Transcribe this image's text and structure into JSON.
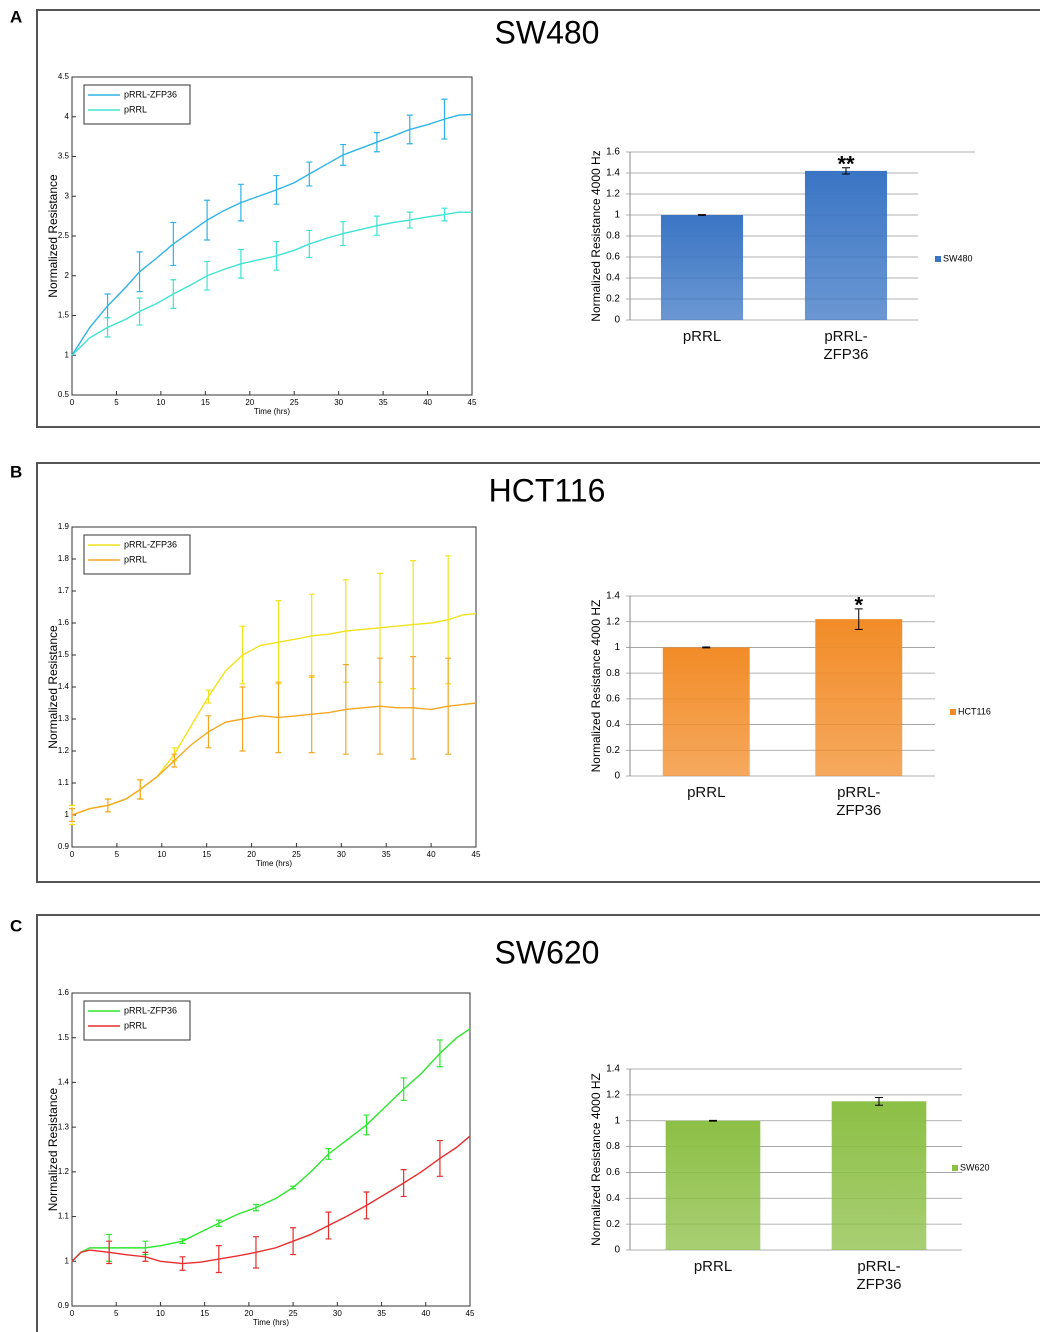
{
  "panels": [
    {
      "letter": "A",
      "title": "SW480"
    },
    {
      "letter": "B",
      "title": "HCT116"
    },
    {
      "letter": "C",
      "title": "SW620"
    }
  ],
  "chart_data": [
    {
      "type": "line",
      "xlabel": "Time (hrs)",
      "ylabel": "Normalized Resistance",
      "xlim": [
        0,
        45
      ],
      "ylim": [
        0.5,
        4.5
      ],
      "xticks": [
        0,
        5,
        10,
        15,
        20,
        25,
        30,
        35,
        40,
        45
      ],
      "yticks": [
        0.5,
        1,
        1.5,
        2,
        2.5,
        3,
        3.5,
        4,
        4.5
      ],
      "legend": "upper left",
      "x": [
        0,
        2,
        4,
        6,
        7.6,
        9.5,
        11.4,
        13.3,
        15.2,
        17.1,
        19,
        21,
        23,
        25,
        26.7,
        28.6,
        30.5,
        32.4,
        34.3,
        36.2,
        38,
        40,
        41.9,
        43.5,
        45
      ],
      "series": [
        {
          "name": "pRRL-ZFP36",
          "color": "#2fb3e6",
          "values": [
            1.0,
            1.35,
            1.62,
            1.85,
            2.05,
            2.22,
            2.4,
            2.55,
            2.7,
            2.82,
            2.92,
            3.0,
            3.08,
            3.17,
            3.28,
            3.4,
            3.52,
            3.6,
            3.68,
            3.76,
            3.84,
            3.9,
            3.97,
            4.02,
            4.03
          ],
          "errors": [
            null,
            null,
            0.15,
            null,
            0.25,
            null,
            0.27,
            null,
            0.25,
            null,
            0.23,
            null,
            0.18,
            null,
            0.15,
            null,
            0.13,
            null,
            0.12,
            null,
            0.18,
            null,
            0.25,
            null,
            null
          ]
        },
        {
          "name": "pRRL",
          "color": "#3ee3d3",
          "values": [
            1.0,
            1.22,
            1.35,
            1.45,
            1.55,
            1.65,
            1.77,
            1.88,
            2.0,
            2.08,
            2.15,
            2.2,
            2.25,
            2.32,
            2.4,
            2.47,
            2.53,
            2.58,
            2.63,
            2.67,
            2.7,
            2.74,
            2.77,
            2.8,
            2.8
          ],
          "errors": [
            null,
            null,
            0.12,
            null,
            0.17,
            null,
            0.18,
            null,
            0.18,
            null,
            0.18,
            null,
            0.18,
            null,
            0.17,
            null,
            0.15,
            null,
            0.12,
            null,
            0.1,
            null,
            0.08,
            null,
            null
          ]
        }
      ]
    },
    {
      "type": "bar",
      "ylabel": "Normalized Resistance 4000 Hz",
      "categories": [
        "pRRL",
        "pRRL-ZFP36"
      ],
      "values": [
        1,
        1.42
      ],
      "errors": [
        0.003,
        0.03
      ],
      "ylim": [
        0,
        1.6
      ],
      "yticks": [
        0,
        0.2,
        0.4,
        0.6,
        0.8,
        1,
        1.2,
        1.4,
        1.6
      ],
      "color": "#3a75c4",
      "legend_label": "SW480",
      "annotation": "**",
      "grid": true
    },
    {
      "type": "line",
      "xlabel": "Time (hrs)",
      "ylabel": "Normalized Resistance",
      "xlim": [
        0,
        45
      ],
      "ylim": [
        0.9,
        1.9
      ],
      "xticks": [
        0,
        5,
        10,
        15,
        20,
        25,
        30,
        35,
        40,
        45
      ],
      "yticks": [
        0.9,
        1,
        1.1,
        1.2,
        1.3,
        1.4,
        1.5,
        1.6,
        1.7,
        1.8,
        1.9
      ],
      "legend": "upper left",
      "x": [
        0,
        2,
        4,
        6,
        7.6,
        9.5,
        11.4,
        13.3,
        15.2,
        17.1,
        19,
        21,
        23,
        25,
        26.7,
        28.6,
        30.5,
        32.4,
        34.3,
        36.2,
        38,
        40,
        41.9,
        43.5,
        45
      ],
      "series": [
        {
          "name": "pRRL-ZFP36",
          "color": "#f2e21e",
          "values": [
            1.0,
            1.02,
            1.03,
            1.05,
            1.08,
            1.12,
            1.19,
            1.28,
            1.37,
            1.45,
            1.5,
            1.53,
            1.54,
            1.55,
            1.56,
            1.565,
            1.575,
            1.58,
            1.585,
            1.59,
            1.595,
            1.6,
            1.61,
            1.625,
            1.63
          ],
          "errors": [
            0.03,
            null,
            0.02,
            null,
            0.03,
            null,
            0.02,
            null,
            0.02,
            null,
            0.09,
            null,
            0.13,
            null,
            0.13,
            null,
            0.16,
            null,
            0.17,
            null,
            0.2,
            null,
            0.2,
            null,
            null
          ]
        },
        {
          "name": "pRRL",
          "color": "#f5a623",
          "values": [
            1.0,
            1.02,
            1.03,
            1.05,
            1.08,
            1.12,
            1.17,
            1.22,
            1.26,
            1.29,
            1.3,
            1.31,
            1.305,
            1.31,
            1.315,
            1.32,
            1.33,
            1.335,
            1.34,
            1.335,
            1.335,
            1.33,
            1.34,
            1.345,
            1.35
          ],
          "errors": [
            0.02,
            null,
            0.02,
            null,
            0.03,
            null,
            0.02,
            null,
            0.05,
            null,
            0.1,
            null,
            0.11,
            null,
            0.12,
            null,
            0.14,
            null,
            0.15,
            null,
            0.16,
            null,
            0.15,
            null,
            null
          ]
        }
      ]
    },
    {
      "type": "bar",
      "ylabel": "Normalized Resistance 4000 HZ",
      "categories": [
        "pRRL",
        "pRRL-ZFP36"
      ],
      "values": [
        1,
        1.22
      ],
      "errors": [
        0.003,
        0.08
      ],
      "ylim": [
        0,
        1.4
      ],
      "yticks": [
        0,
        0.2,
        0.4,
        0.6,
        0.8,
        1,
        1.2,
        1.4
      ],
      "color": "#f28c28",
      "legend_label": "HCT116",
      "annotation": "*",
      "grid": true
    },
    {
      "type": "line",
      "xlabel": "Time (hrs)",
      "ylabel": "Normalized Resistance",
      "xlim": [
        0,
        45
      ],
      "ylim": [
        0.9,
        1.6
      ],
      "xticks": [
        0,
        5,
        10,
        15,
        20,
        25,
        30,
        35,
        40,
        45
      ],
      "yticks": [
        0.9,
        1,
        1.1,
        1.2,
        1.3,
        1.4,
        1.5,
        1.6
      ],
      "legend": "upper left",
      "x": [
        0,
        1,
        2,
        4.2,
        6,
        8.3,
        10,
        12.5,
        14.5,
        16.6,
        18.7,
        20.8,
        23,
        25,
        27,
        29,
        31,
        33.3,
        35.4,
        37.5,
        39.5,
        41.6,
        43.5,
        45
      ],
      "series": [
        {
          "name": "pRRL-ZFP36",
          "color": "#2ee62e",
          "values": [
            1.0,
            1.02,
            1.03,
            1.03,
            1.03,
            1.03,
            1.035,
            1.045,
            1.065,
            1.085,
            1.105,
            1.12,
            1.14,
            1.165,
            1.2,
            1.24,
            1.27,
            1.305,
            1.345,
            1.385,
            1.42,
            1.465,
            1.5,
            1.52
          ],
          "errors": [
            null,
            null,
            null,
            0.03,
            null,
            0.015,
            null,
            0.005,
            null,
            0.007,
            null,
            0.007,
            null,
            0.003,
            null,
            0.012,
            null,
            0.022,
            null,
            0.025,
            null,
            0.03,
            null,
            null
          ]
        },
        {
          "name": "pRRL",
          "color": "#e62e2e",
          "values": [
            1.0,
            1.02,
            1.025,
            1.02,
            1.015,
            1.01,
            1.0,
            0.995,
            0.998,
            1.005,
            1.012,
            1.02,
            1.03,
            1.045,
            1.06,
            1.08,
            1.1,
            1.125,
            1.15,
            1.175,
            1.2,
            1.23,
            1.255,
            1.28
          ],
          "errors": [
            null,
            null,
            null,
            0.025,
            null,
            0.01,
            null,
            0.015,
            null,
            0.03,
            null,
            0.035,
            null,
            0.03,
            null,
            0.03,
            null,
            0.03,
            null,
            0.03,
            null,
            0.04,
            null,
            null
          ]
        }
      ]
    },
    {
      "type": "bar",
      "ylabel": "Normalized Resistance 4000 HZ",
      "categories": [
        "pRRL",
        "pRRL-ZFP36"
      ],
      "values": [
        1,
        1.15
      ],
      "errors": [
        0.003,
        0.03
      ],
      "ylim": [
        0,
        1.4
      ],
      "yticks": [
        0,
        0.2,
        0.4,
        0.6,
        0.8,
        1,
        1.2,
        1.4
      ],
      "color": "#8cbf45",
      "legend_label": "SW620",
      "grid": true
    }
  ]
}
